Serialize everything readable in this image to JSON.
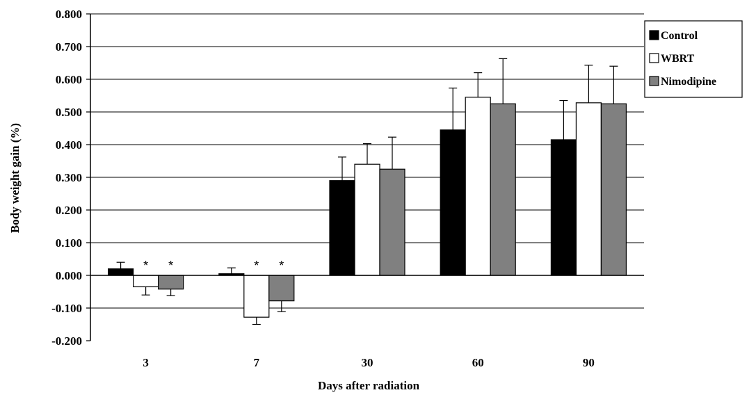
{
  "chart_data": {
    "type": "bar",
    "title": "",
    "xlabel": "Days after radiation",
    "ylabel": "Body weight gain (%)",
    "ylim": [
      -0.2,
      0.8
    ],
    "yticks": [
      -0.2,
      -0.1,
      0.0,
      0.1,
      0.2,
      0.3,
      0.4,
      0.5,
      0.6,
      0.7,
      0.8
    ],
    "ytick_labels": [
      "-0.200",
      "-0.100",
      "0.000",
      "0.100",
      "0.200",
      "0.300",
      "0.400",
      "0.500",
      "0.600",
      "0.700",
      "0.800"
    ],
    "grid": "horizontal",
    "legend_position": "top-right",
    "categories": [
      "3",
      "7",
      "30",
      "60",
      "90"
    ],
    "series": [
      {
        "name": "Control",
        "color": "#000000",
        "values": [
          0.02,
          0.005,
          0.29,
          0.445,
          0.415
        ],
        "errors": [
          0.02,
          0.018,
          0.072,
          0.128,
          0.12
        ]
      },
      {
        "name": "WBRT",
        "color": "#ffffff",
        "values": [
          -0.035,
          -0.128,
          0.34,
          0.545,
          0.528
        ],
        "errors": [
          0.025,
          0.022,
          0.063,
          0.075,
          0.115
        ]
      },
      {
        "name": "Nimodipine",
        "color": "#808080",
        "values": [
          -0.042,
          -0.078,
          0.325,
          0.525,
          0.525
        ],
        "errors": [
          0.02,
          0.033,
          0.098,
          0.138,
          0.115
        ]
      }
    ],
    "annotations": [
      {
        "category": "3",
        "series": "WBRT",
        "text": "*"
      },
      {
        "category": "3",
        "series": "Nimodipine",
        "text": "*"
      },
      {
        "category": "7",
        "series": "WBRT",
        "text": "*"
      },
      {
        "category": "7",
        "series": "Nimodipine",
        "text": "*"
      }
    ]
  }
}
